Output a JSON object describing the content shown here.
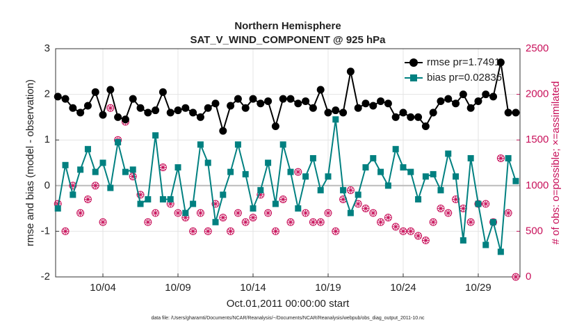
{
  "chart_data": {
    "type": "line",
    "title": "Northern Hemisphere",
    "subtitle": "SAT_V_WIND_COMPONENT @ 925 hPa",
    "ylabel": "rmse and bias (model - observation)",
    "y2label": "# of obs: o=possible; ×=assimilated",
    "xlabel": "Oct.01,2011 00:00:00 start",
    "footnote": "data file: /Users/gharamti/Documents/NCAR/Reanalysis/~/Documents/NCAR/Reanalysis/webpub/obs_diag_output_2011-10.nc",
    "x": [
      1,
      1.5,
      2,
      2.5,
      3,
      3.5,
      4,
      4.5,
      5,
      5.5,
      6,
      6.5,
      7,
      7.5,
      8,
      8.5,
      9,
      9.5,
      10,
      10.5,
      11,
      11.5,
      12,
      12.5,
      13,
      13.5,
      14,
      14.5,
      15,
      15.5,
      16,
      16.5,
      17,
      17.5,
      18,
      18.5,
      19,
      19.5,
      20,
      20.5,
      21,
      21.5,
      22,
      22.5,
      23,
      23.5,
      24,
      24.5,
      25,
      25.5,
      26,
      26.5,
      27,
      27.5,
      28,
      28.5,
      29,
      29.5,
      30,
      30.5,
      31,
      31.5
    ],
    "xlim": [
      0.85,
      31.78
    ],
    "xticks": [
      {
        "value": 4,
        "label": "10/04"
      },
      {
        "value": 9,
        "label": "10/09"
      },
      {
        "value": 14,
        "label": "10/14"
      },
      {
        "value": 19,
        "label": "10/19"
      },
      {
        "value": 24,
        "label": "10/24"
      },
      {
        "value": 29,
        "label": "10/29"
      }
    ],
    "ylim": [
      -2,
      3
    ],
    "yticks": [
      -2,
      -1,
      0,
      1,
      2,
      3
    ],
    "y2lim": [
      0,
      2500
    ],
    "y2ticks": [
      0,
      500,
      1000,
      1500,
      2000,
      2500
    ],
    "grid": true,
    "legend": "upper right",
    "series": [
      {
        "name": "rmse pr=1.7491",
        "color": "#000000",
        "marker": "circle",
        "values": [
          1.95,
          1.9,
          1.7,
          1.6,
          1.75,
          2.05,
          1.55,
          2.1,
          1.5,
          1.45,
          1.9,
          1.7,
          1.6,
          1.65,
          2.05,
          1.6,
          1.65,
          1.7,
          1.6,
          1.5,
          1.7,
          1.8,
          1.2,
          1.75,
          1.9,
          1.7,
          1.9,
          1.8,
          1.85,
          1.3,
          1.9,
          1.9,
          1.8,
          1.85,
          1.7,
          2.1,
          1.6,
          1.65,
          1.6,
          2.5,
          1.7,
          1.8,
          1.75,
          1.85,
          1.8,
          1.5,
          1.6,
          1.5,
          1.5,
          1.3,
          1.6,
          1.85,
          1.9,
          1.8,
          2.0,
          1.7,
          1.85,
          2.0,
          1.95,
          2.7,
          1.6,
          1.6
        ]
      },
      {
        "name": "bias pr=0.02836",
        "color": "#008080",
        "marker": "square",
        "values": [
          -0.5,
          0.45,
          -0.2,
          0.35,
          0.8,
          0.3,
          0.5,
          -0.05,
          0.95,
          0.3,
          0.35,
          -0.4,
          -0.3,
          1.1,
          -0.3,
          -0.3,
          0.4,
          -0.6,
          -0.4,
          0.9,
          0.5,
          -0.8,
          -0.2,
          0.3,
          0.9,
          0.25,
          -0.5,
          -0.1,
          0.5,
          -0.4,
          0.9,
          0.3,
          -0.5,
          0.2,
          0.6,
          -0.1,
          0.2,
          1.45,
          -0.1,
          -0.6,
          -0.2,
          0.4,
          0.6,
          0.3,
          0,
          0.8,
          0.4,
          0.3,
          -0.3,
          0.2,
          0.25,
          -0.1,
          0.7,
          0.2,
          -1.2,
          0.6,
          -0.4,
          -1.3,
          -0.8,
          -1.45,
          0.6,
          0.1
        ]
      }
    ],
    "obs_series": [
      {
        "color": "#c8105a",
        "marker": "o",
        "axis": "y2",
        "values": [
          800,
          500,
          1000,
          700,
          850,
          1000,
          600,
          1850,
          1500,
          1700,
          1100,
          900,
          600,
          700,
          1200,
          800,
          700,
          650,
          500,
          700,
          500,
          800,
          650,
          500,
          700,
          600,
          650,
          900,
          700,
          500,
          850,
          600,
          1150,
          700,
          600,
          600,
          700,
          500,
          850,
          950,
          800,
          750,
          700,
          600,
          650,
          550,
          500,
          500,
          450,
          400,
          600,
          750,
          700,
          850,
          750,
          600,
          800,
          800,
          600,
          1300,
          700,
          0
        ]
      },
      {
        "color": "#c8105a",
        "marker": "asterisk",
        "axis": "y2",
        "values": [
          800,
          500,
          1000,
          700,
          850,
          1000,
          600,
          1850,
          1500,
          1700,
          1100,
          900,
          600,
          700,
          1200,
          800,
          700,
          650,
          500,
          700,
          500,
          800,
          650,
          500,
          700,
          600,
          650,
          900,
          700,
          500,
          850,
          600,
          1150,
          700,
          600,
          600,
          700,
          500,
          850,
          950,
          800,
          750,
          700,
          600,
          650,
          550,
          500,
          500,
          450,
          400,
          600,
          750,
          700,
          850,
          750,
          600,
          800,
          800,
          600,
          1300,
          700,
          0
        ]
      }
    ]
  }
}
